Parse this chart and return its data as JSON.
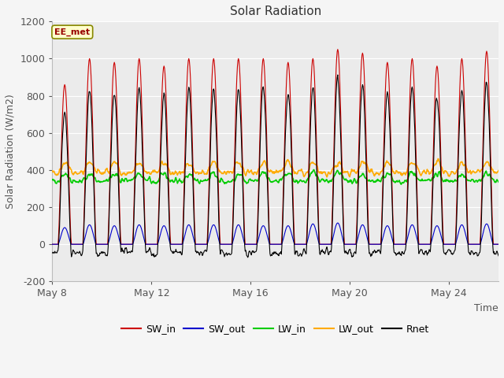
{
  "title": "Solar Radiation",
  "ylabel": "Solar Radiation (W/m2)",
  "xlabel": "Time",
  "ylim": [
    -200,
    1200
  ],
  "yticks": [
    -200,
    0,
    200,
    400,
    600,
    800,
    1000,
    1200
  ],
  "n_days": 18,
  "sw_in_peaks": [
    860,
    1000,
    980,
    1000,
    960,
    1000,
    1000,
    1000,
    1000,
    980,
    1000,
    1050,
    1030,
    980,
    1000,
    960,
    1000,
    1040
  ],
  "sw_out_peaks": [
    90,
    105,
    100,
    105,
    100,
    105,
    105,
    105,
    100,
    100,
    110,
    115,
    105,
    100,
    105,
    100,
    105,
    110
  ],
  "lw_in_base": 340,
  "lw_in_noise": 15,
  "lw_out_base": 385,
  "lw_out_noise": 15,
  "lw_in_day_boost": 40,
  "lw_out_day_boost": 55,
  "rnet_night": -65,
  "colors": {
    "SW_in": "#cc0000",
    "SW_out": "#0000cc",
    "LW_in": "#00cc00",
    "LW_out": "#ffaa00",
    "Rnet": "#000000"
  },
  "xtick_labels": [
    "May 8",
    "May 12",
    "May 16",
    "May 20",
    "May 24"
  ],
  "xtick_positions": [
    0,
    4,
    8,
    12,
    16
  ],
  "label_text": "EE_met",
  "plot_bg_color": "#ebebeb",
  "fig_bg_color": "#f5f5f5",
  "grid_color": "#ffffff",
  "figsize": [
    6.4,
    4.8
  ],
  "dpi": 100
}
